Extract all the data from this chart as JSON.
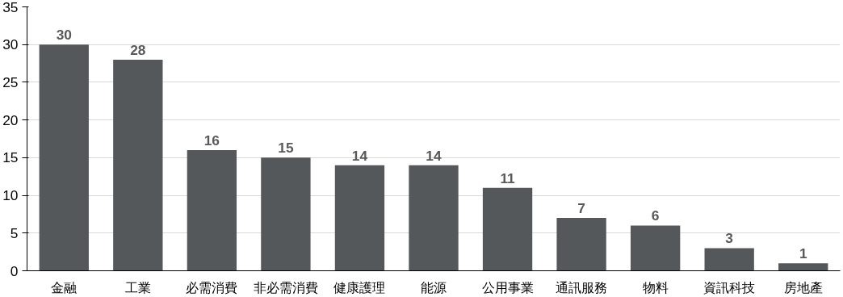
{
  "chart_data": {
    "type": "bar",
    "categories": [
      "金融",
      "工業",
      "必需消費",
      "非必需消費",
      "健康護理",
      "能源",
      "公用事業",
      "通訊服務",
      "物料",
      "資訊科技",
      "房地產"
    ],
    "values": [
      30,
      28,
      16,
      15,
      14,
      14,
      11,
      7,
      6,
      3,
      1
    ],
    "color": "#55585b",
    "ylim": [
      0,
      35
    ],
    "yticks": [
      0,
      5,
      10,
      15,
      20,
      25,
      30,
      35
    ],
    "grid": "y",
    "data_labels": true
  }
}
